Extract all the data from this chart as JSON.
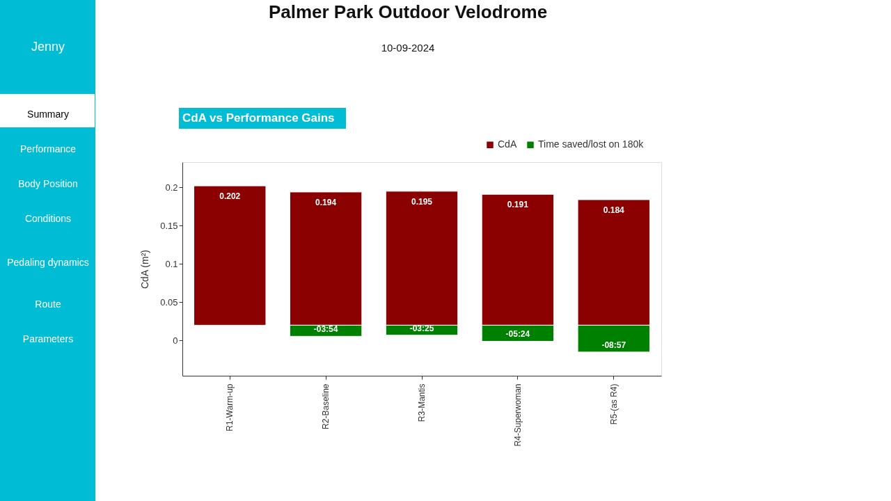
{
  "chart_data": {
    "type": "bar",
    "title": "Palmer Park Outdoor Velodrome",
    "subtitle": "10-09-2024",
    "ylabel": "CdA (m²)",
    "annotations": [
      "CdA vs Performance Gains",
      "Jenny",
      "Summary",
      "Performance",
      "Body Position",
      "Conditions",
      "Pedaling dynamics",
      "Route",
      "Parameters"
    ],
    "categories": [
      "R1-Warm-up",
      "R2-Baseline",
      "R3-Mantis",
      "R4-Superwoman",
      "R5-(as R4)"
    ],
    "series": [
      {
        "name": "CdA",
        "color": "#8b0000",
        "base": [
          0.02,
          0.02,
          0.02,
          0.02,
          0.02
        ],
        "values": [
          0.182,
          0.174,
          0.175,
          0.171,
          0.164
        ],
        "value_labels": [
          "0.202",
          "0.194",
          "0.195",
          "0.191",
          "0.184"
        ]
      },
      {
        "name": "Time saved/lost on 180k",
        "color": "#008000",
        "base": [
          null,
          0.02,
          0.02,
          0.02,
          0.02
        ],
        "values": [
          null,
          -0.0145,
          -0.013,
          -0.021,
          -0.035
        ],
        "value_labels": [
          null,
          "-03:54",
          "-03:25",
          "-05:24",
          "-08:57"
        ]
      }
    ],
    "ylim": [
      -0.046,
      0.233
    ],
    "yticks": [
      0,
      0.05,
      0.1,
      0.15,
      0.2
    ],
    "grid": false,
    "legend": "top right"
  }
}
